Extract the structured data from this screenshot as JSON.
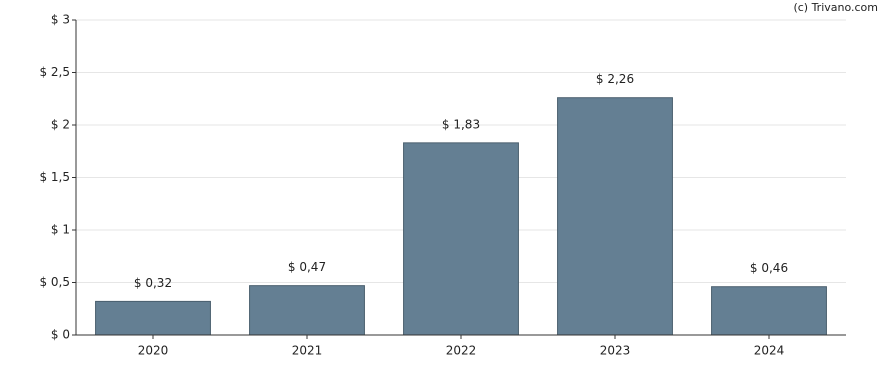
{
  "chart_data": {
    "type": "bar",
    "categories": [
      "2020",
      "2021",
      "2022",
      "2023",
      "2024"
    ],
    "values": [
      0.32,
      0.47,
      1.83,
      2.26,
      0.46
    ],
    "value_labels": [
      "$ 0,32",
      "$ 0,47",
      "$ 1,83",
      "$ 2,26",
      "$ 0,46"
    ],
    "color": "#647f93",
    "ylim": [
      0,
      3
    ],
    "yticks": [
      {
        "value": 0,
        "label": "$ 0"
      },
      {
        "value": 0.5,
        "label": "$ 0,5"
      },
      {
        "value": 1,
        "label": "$ 1"
      },
      {
        "value": 1.5,
        "label": "$ 1,5"
      },
      {
        "value": 2,
        "label": "$ 2"
      },
      {
        "value": 2.5,
        "label": "$ 2,5"
      },
      {
        "value": 3,
        "label": "$ 3"
      }
    ],
    "grid": true,
    "annotation": "(c) Trivano.com"
  }
}
